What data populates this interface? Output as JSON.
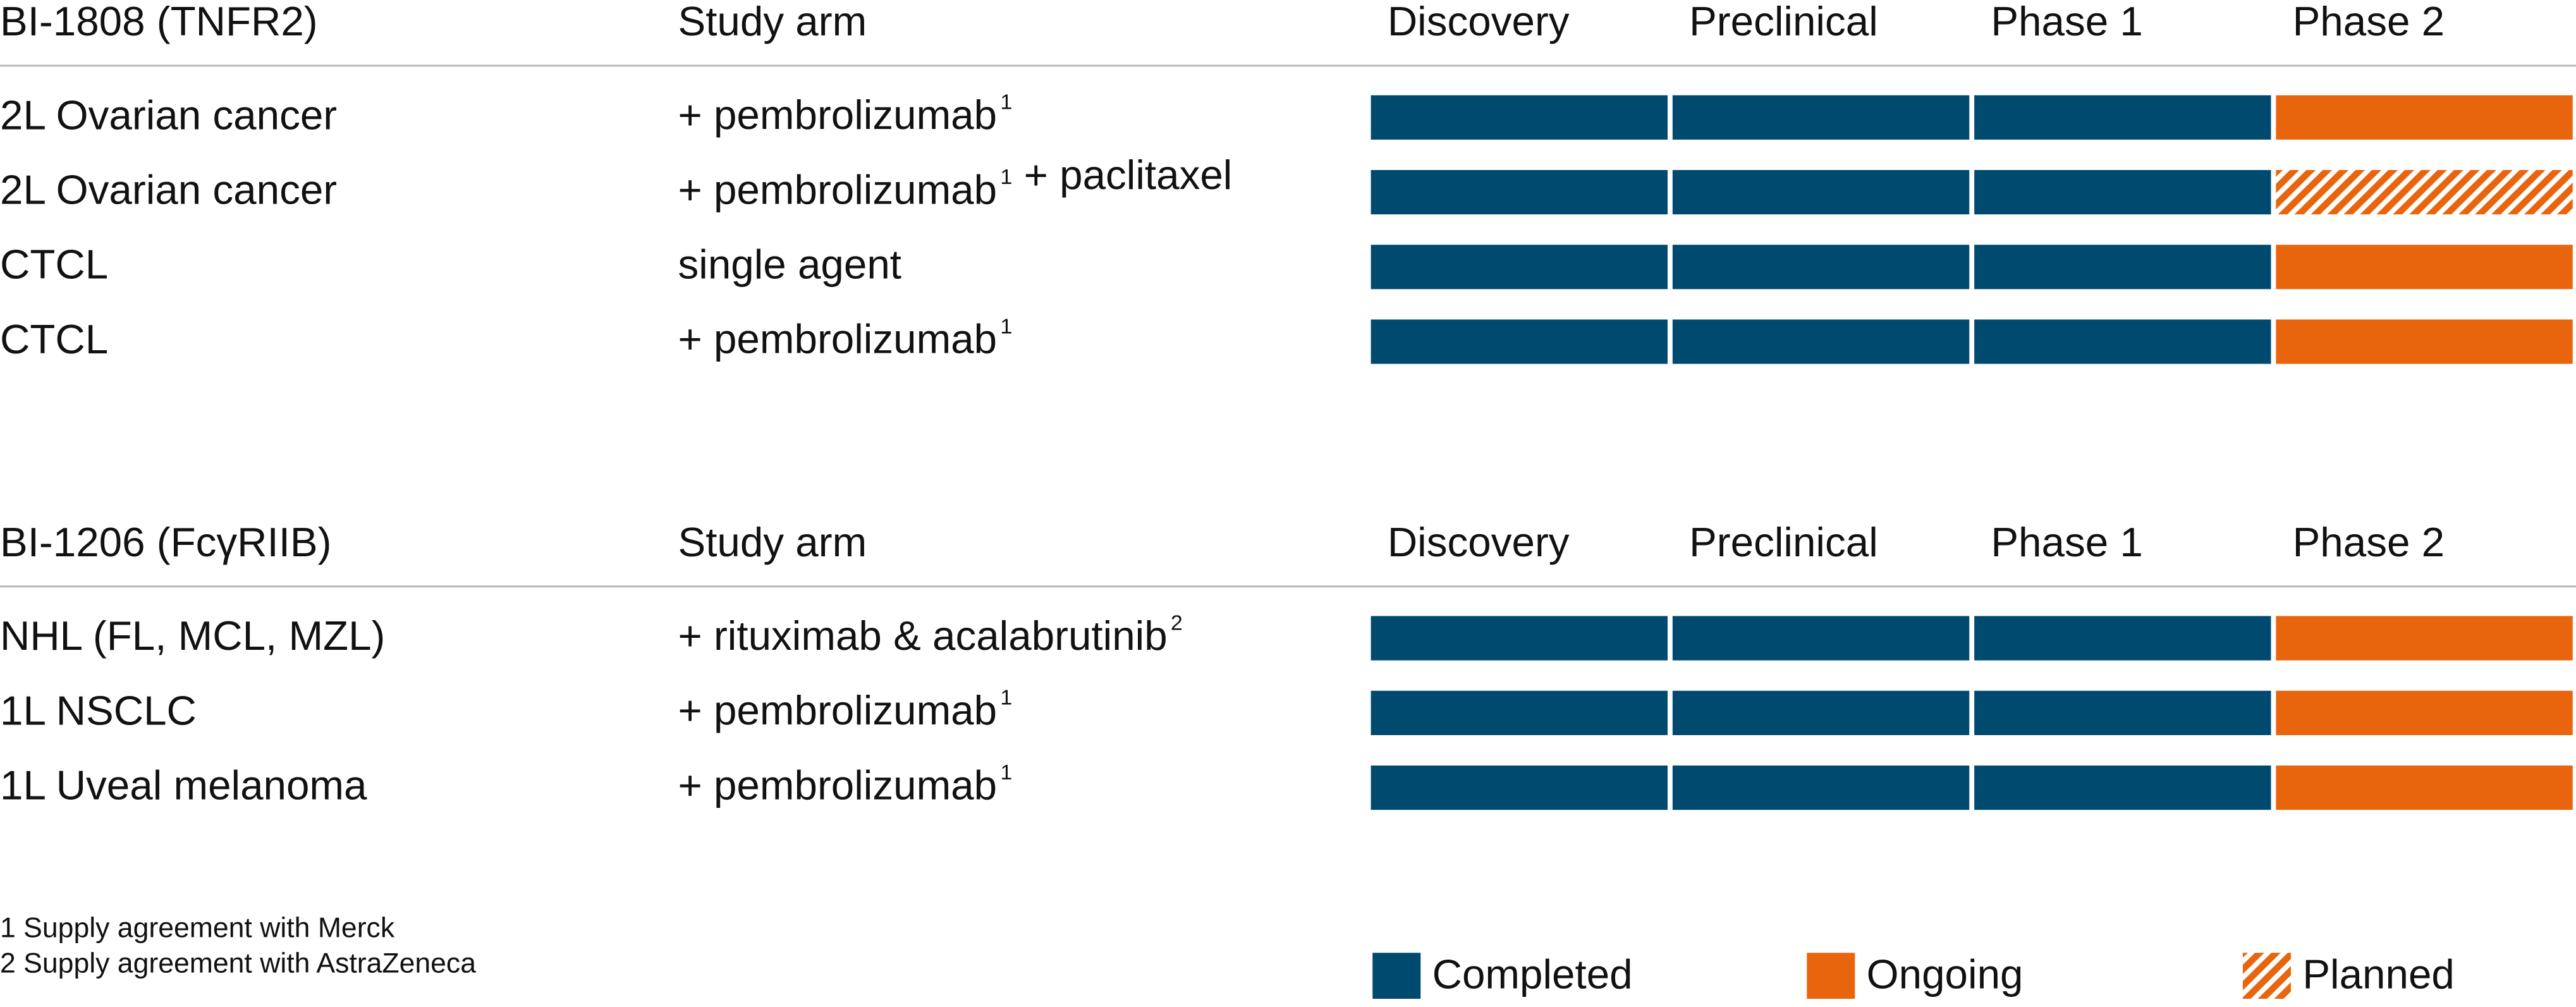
{
  "sections": [
    {
      "drug": "BI-1808 (TNFR2)",
      "arm_header": "Study arm",
      "phases": [
        "Discovery",
        "Preclinical",
        "Phase 1",
        "Phase 2"
      ],
      "rows": [
        {
          "indication": "2L Ovarian cancer",
          "arm": [
            {
              "text": "+ pembrolizumab",
              "sup": "1"
            }
          ],
          "status": [
            "Completed",
            "Completed",
            "Completed",
            "Ongoing"
          ]
        },
        {
          "indication": "2L Ovarian cancer",
          "arm": [
            {
              "text": "+ pembrolizumab",
              "sup": "1"
            },
            {
              "text": "+ paclitaxel"
            }
          ],
          "status": [
            "Completed",
            "Completed",
            "Completed",
            "Planned"
          ]
        },
        {
          "indication": "CTCL",
          "arm": [
            {
              "text": "single agent"
            }
          ],
          "status": [
            "Completed",
            "Completed",
            "Completed",
            "Ongoing"
          ]
        },
        {
          "indication": "CTCL",
          "arm": [
            {
              "text": "+ pembrolizumab",
              "sup": "1"
            }
          ],
          "status": [
            "Completed",
            "Completed",
            "Completed",
            "Ongoing"
          ]
        }
      ]
    },
    {
      "drug": "BI-1206 (FcγRIIB)",
      "arm_header": "Study arm",
      "phases": [
        "Discovery",
        "Preclinical",
        "Phase 1",
        "Phase 2"
      ],
      "rows": [
        {
          "indication": "NHL (FL, MCL, MZL)",
          "arm": [
            {
              "text": "+ rituximab & acalabrutinib",
              "sup": "2"
            }
          ],
          "status": [
            "Completed",
            "Completed",
            "Completed",
            "Ongoing"
          ]
        },
        {
          "indication": "1L NSCLC",
          "arm": [
            {
              "text": "+ pembrolizumab",
              "sup": "1"
            }
          ],
          "status": [
            "Completed",
            "Completed",
            "Completed",
            "Ongoing"
          ]
        },
        {
          "indication": "1L Uveal melanoma",
          "arm": [
            {
              "text": "+ pembrolizumab",
              "sup": "1"
            }
          ],
          "status": [
            "Completed",
            "Completed",
            "Completed",
            "Ongoing"
          ]
        }
      ]
    }
  ],
  "footnotes": [
    "1 Supply agreement with Merck",
    "2 Supply agreement with AstraZeneca"
  ],
  "legend": [
    {
      "label": "Completed",
      "color": "#004a70",
      "pattern": "solid"
    },
    {
      "label": "Ongoing",
      "color": "#e8650e",
      "pattern": "solid"
    },
    {
      "label": "Planned",
      "color": "#e8650e",
      "pattern": "hatch"
    }
  ]
}
